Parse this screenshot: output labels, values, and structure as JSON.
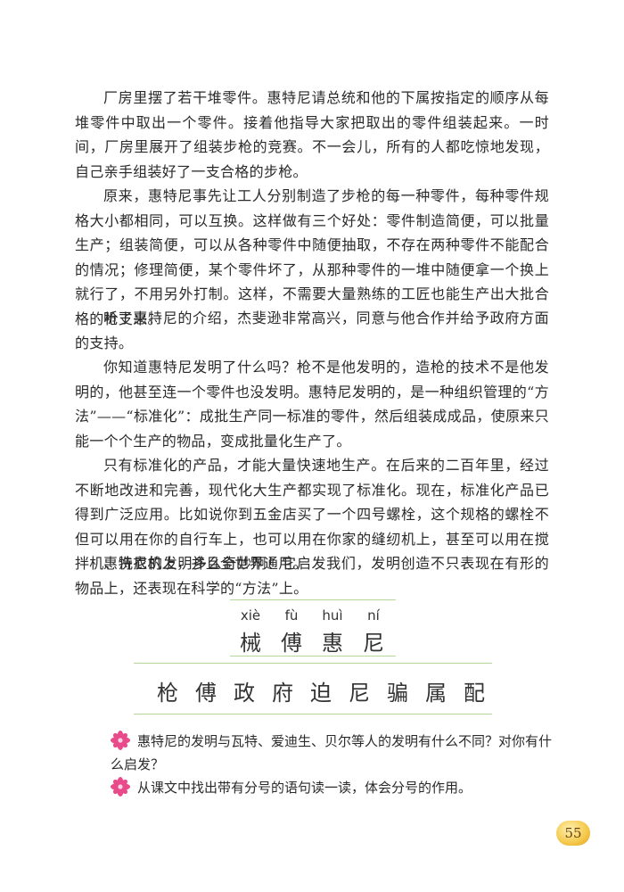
{
  "paragraphs": [
    "厂房里摆了若干堆零件。惠特尼请总统和他的下属按指定的顺序从每堆零件中取出一个零件。接着他指导大家把取出的零件组装起来。一时间，厂房里展开了组装步枪的竞赛。不一会儿，所有的人都吃惊地发现，自己亲手组装好了一支合格的步枪。",
    "原来，惠特尼事先让工人分别制造了步枪的每一种零件，每种零件规格大小都相同，可以互换。这样做有三个好处：零件制造简便，可以批量生产；组装简便，可以从各种零件中随便抽取，不存在两种零件不能配合的情况；修理简便，某个零件坏了，从那种零件的一堆中随便拿一个换上就行了，不用另外打制。这样，不需要大量熟练的工匠也能生产出大批合格的枪支来。",
    "听了惠特尼的介绍，杰斐逊非常高兴，同意与他合作并给予政府方面的支持。",
    "你知道惠特尼发明了什么吗？枪不是他发明的，造枪的技术不是他发明的，他甚至连一个零件也没发明。惠特尼发明的，是一种组织管理的“方法”——“标准化”：成批生产同一标准的零件，然后组装成成品，使原来只能一个个生产的物品，变成批量化生产了。",
    "只有标准化的产品，才能大量快速地生产。在后来的二百年里，经过不断地改进和完善，现代化大生产都实现了标准化。现在，标准化产品已得到广泛应用。比如说你到五金店买了一个四号螺栓，这个规格的螺栓不但可以用在你的自行车上，也可以用在你家的缝纫机上，甚至可以用在搅拌机、洗衣机上，并且全世界通用。",
    "惠特尼的发明多么奇妙啊！它启发我们，发明创造不只表现在有形的物品上，还表现在科学的“方法”上。"
  ],
  "pinyin": [
    "xiè",
    "fù",
    "huì",
    "ní"
  ],
  "recognize_chars": [
    "械",
    "傅",
    "惠",
    "尼"
  ],
  "write_chars": [
    "枪",
    "傅",
    "政",
    "府",
    "迫",
    "尼",
    "骗",
    "属",
    "配"
  ],
  "questions": [
    "惠特尼的发明与瓦特、爱迪生、贝尔等人的发明有什么不同？对你有什么启发？",
    "从课文中找出带有分号的语句读一读，体会分号的作用。"
  ],
  "page_number": "55",
  "colors": {
    "rule_green": "#b7d89a",
    "flower_pink": "#e94b8a",
    "badge_gold": "#f4c84a"
  },
  "icons": {
    "question_marker": "flower-icon"
  }
}
